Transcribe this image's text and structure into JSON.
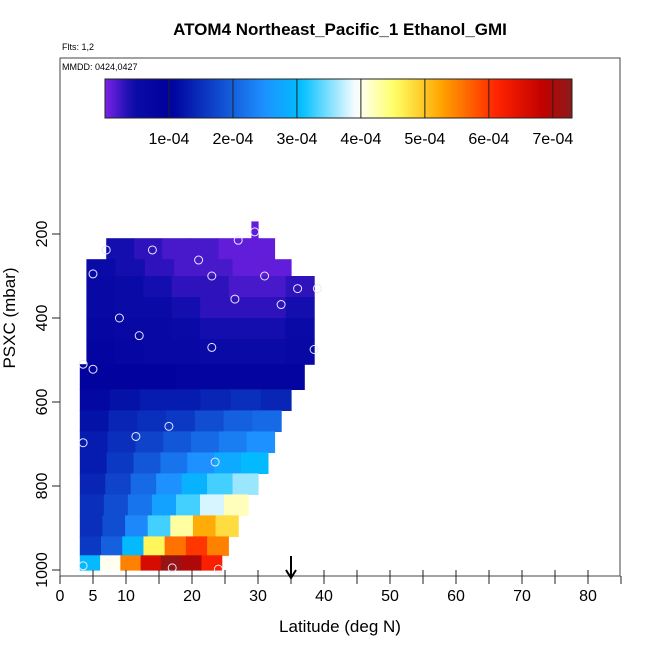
{
  "chart_data": {
    "type": "heatmap",
    "title": "ATOM4 Northeast_Pacific_1 Ethanol_GMI",
    "flights_label": "Flts: 1,2",
    "dates_label": "MMDD: 0424,0427",
    "xlabel": "Latitude (deg N)",
    "ylabel": "PSXC (mbar)",
    "xlim": [
      0,
      84
    ],
    "ylim": [
      1000,
      150
    ],
    "y_reversed": true,
    "grid": false,
    "x_ticks": [
      "0",
      "5",
      "10",
      "20",
      "30",
      "40",
      "50",
      "60",
      "70",
      "80"
    ],
    "x_tick_values": [
      0,
      5,
      10,
      20,
      30,
      40,
      50,
      60,
      70,
      80
    ],
    "x_minor_ticks": [
      15,
      25,
      35,
      45,
      55,
      65,
      75,
      85
    ],
    "y_ticks": [
      "200",
      "400",
      "600",
      "800",
      "1000"
    ],
    "y_tick_values": [
      200,
      400,
      600,
      800,
      1000
    ],
    "colorbar": {
      "tick_labels": [
        "1e-04",
        "2e-04",
        "3e-04",
        "4e-04",
        "5e-04",
        "6e-04",
        "7e-04"
      ],
      "tick_values": [
        0.0001,
        0.0002,
        0.0003,
        0.0004,
        0.0005,
        0.0006,
        0.0007
      ],
      "range": [
        0,
        0.00073
      ],
      "colors": [
        "#7b22e8",
        "#0b0ca8",
        "#00009c",
        "#1e90ff",
        "#00bfff",
        "#ffffff",
        "#ffff66",
        "#ffa500",
        "#ff2200",
        "#c00000",
        "#8b1a1a"
      ]
    },
    "marker": {
      "latitude": 35,
      "label": "arrow"
    },
    "layers": [
      {
        "p_top": 170,
        "p_bot": 210,
        "lat_min": 29,
        "lat_max": 30,
        "values": [
          1e-05
        ]
      },
      {
        "p_top": 210,
        "p_bot": 260,
        "lat_min": 7,
        "lat_max": 32.5,
        "values": [
          4e-05,
          3e-05,
          2e-05,
          2e-05,
          1e-05,
          1e-05
        ]
      },
      {
        "p_top": 260,
        "p_bot": 300,
        "lat_min": 4,
        "lat_max": 35,
        "values": [
          5e-05,
          4e-05,
          3e-05,
          2e-05,
          2e-05,
          1e-05,
          1e-05
        ]
      },
      {
        "p_top": 300,
        "p_bot": 350,
        "lat_min": 4,
        "lat_max": 38.5,
        "values": [
          6e-05,
          5e-05,
          4e-05,
          3e-05,
          3e-05,
          2e-05,
          2e-05,
          3e-05
        ]
      },
      {
        "p_top": 350,
        "p_bot": 400,
        "lat_min": 4,
        "lat_max": 38.5,
        "values": [
          6e-05,
          5e-05,
          5e-05,
          4e-05,
          3e-05,
          3e-05,
          3e-05,
          4e-05
        ]
      },
      {
        "p_top": 400,
        "p_bot": 450,
        "lat_min": 4,
        "lat_max": 38.5,
        "values": [
          7e-05,
          6e-05,
          6e-05,
          5e-05,
          4e-05,
          4e-05,
          4e-05,
          5e-05
        ]
      },
      {
        "p_top": 450,
        "p_bot": 510,
        "lat_min": 4,
        "lat_max": 38.5,
        "values": [
          8e-05,
          7e-05,
          6e-05,
          6e-05,
          5e-05,
          5e-05,
          5e-05,
          6e-05
        ]
      },
      {
        "p_top": 510,
        "p_bot": 570,
        "lat_min": 3,
        "lat_max": 37,
        "values": [
          9e-05,
          9e-05,
          9e-05,
          8e-05,
          8e-05,
          8e-05,
          8e-05
        ]
      },
      {
        "p_top": 570,
        "p_bot": 620,
        "lat_min": 3,
        "lat_max": 35,
        "values": [
          0.00011,
          0.00012,
          0.00013,
          0.00013,
          0.00014,
          0.00015,
          0.00014
        ]
      },
      {
        "p_top": 620,
        "p_bot": 670,
        "lat_min": 3,
        "lat_max": 33.5,
        "values": [
          0.00012,
          0.00014,
          0.00015,
          0.00016,
          0.00018,
          0.0002,
          0.00021
        ]
      },
      {
        "p_top": 670,
        "p_bot": 720,
        "lat_min": 3,
        "lat_max": 32.5,
        "values": [
          0.00013,
          0.00015,
          0.00017,
          0.00019,
          0.00021,
          0.00023,
          0.00025
        ]
      },
      {
        "p_top": 720,
        "p_bot": 770,
        "lat_min": 3,
        "lat_max": 31.5,
        "values": [
          0.00013,
          0.00016,
          0.00019,
          0.00022,
          0.00025,
          0.00028,
          0.0003
        ]
      },
      {
        "p_top": 770,
        "p_bot": 820,
        "lat_min": 3,
        "lat_max": 30,
        "values": [
          0.00014,
          0.00017,
          0.00021,
          0.00025,
          0.00029,
          0.00033,
          0.00036
        ]
      },
      {
        "p_top": 820,
        "p_bot": 870,
        "lat_min": 3,
        "lat_max": 28.5,
        "values": [
          0.00015,
          0.00018,
          0.00022,
          0.00027,
          0.00033,
          0.00038,
          0.00042
        ]
      },
      {
        "p_top": 870,
        "p_bot": 920,
        "lat_min": 3,
        "lat_max": 27,
        "values": [
          0.00015,
          0.00018,
          0.00024,
          0.00033,
          0.00043,
          0.00052,
          0.00048
        ]
      },
      {
        "p_top": 920,
        "p_bot": 965,
        "lat_min": 3,
        "lat_max": 25.5,
        "values": [
          0.00016,
          0.0002,
          0.0003,
          0.00046,
          0.00056,
          0.0006,
          0.00055
        ]
      },
      {
        "p_top": 965,
        "p_bot": 1000,
        "lat_min": 3,
        "lat_max": 24.5,
        "values": [
          0.0003,
          0.0004,
          0.00055,
          0.00066,
          0.00072,
          0.0007,
          0.00062
        ]
      }
    ],
    "points": [
      {
        "lat": 29.5,
        "p": 195
      },
      {
        "lat": 27,
        "p": 215
      },
      {
        "lat": 7,
        "p": 238
      },
      {
        "lat": 14,
        "p": 238
      },
      {
        "lat": 21,
        "p": 262
      },
      {
        "lat": 5,
        "p": 295
      },
      {
        "lat": 23,
        "p": 300
      },
      {
        "lat": 31,
        "p": 300
      },
      {
        "lat": 36,
        "p": 330
      },
      {
        "lat": 39,
        "p": 330
      },
      {
        "lat": 26.5,
        "p": 355
      },
      {
        "lat": 33.5,
        "p": 368
      },
      {
        "lat": 9,
        "p": 400
      },
      {
        "lat": 12,
        "p": 442
      },
      {
        "lat": 23,
        "p": 470
      },
      {
        "lat": 38.5,
        "p": 475
      },
      {
        "lat": 3.5,
        "p": 510
      },
      {
        "lat": 5,
        "p": 522
      },
      {
        "lat": 11.5,
        "p": 682
      },
      {
        "lat": 16.5,
        "p": 658
      },
      {
        "lat": 3.5,
        "p": 697
      },
      {
        "lat": 23.5,
        "p": 743
      },
      {
        "lat": 3.5,
        "p": 990
      },
      {
        "lat": 17,
        "p": 995
      },
      {
        "lat": 24,
        "p": 998
      }
    ]
  }
}
